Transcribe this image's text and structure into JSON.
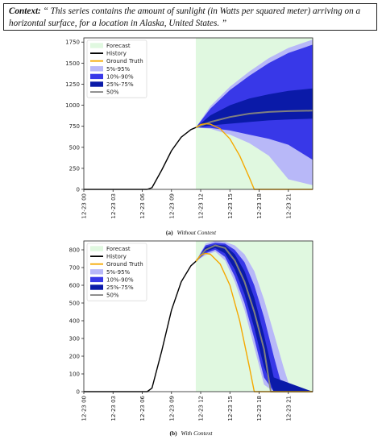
{
  "context": {
    "label": "Context:",
    "text": "“ This series contains the amount of sunlight (in Watts per squared meter) arriving on a horizontal surface, for a location in Alaska, United States. ”"
  },
  "captions": {
    "a_prefix": "(a)",
    "a_text": "Without Context",
    "b_prefix": "(b)",
    "b_text": "With Context"
  },
  "colors": {
    "forecast_bg": "#e0f8e0",
    "history": "#000000",
    "ground_truth": "#f5a800",
    "band_5_95": "#b8b8f8",
    "band_10_90": "#3838e8",
    "band_25_75": "#0a1aa8",
    "median": "#808080"
  },
  "chart_data": [
    {
      "type": "area",
      "title": "",
      "xlabel": "",
      "ylabel": "",
      "legend_position": "upper-left",
      "legend": [
        "Forecast",
        "History",
        "Ground Truth",
        "5%-95%",
        "10%-90%",
        "25%-75%",
        "50%"
      ],
      "x_tick_labels": [
        "12-23 00",
        "12-23 03",
        "12-23 06",
        "12-23 09",
        "12-23 12",
        "12-23 15",
        "12-23 18",
        "12-23 21"
      ],
      "x_ticks": [
        0,
        3,
        6,
        9,
        12,
        15,
        18,
        21
      ],
      "xlim": [
        0,
        23.5
      ],
      "y_ticks": [
        0,
        250,
        500,
        750,
        1000,
        1250,
        1500,
        1750
      ],
      "ylim": [
        0,
        1800
      ],
      "forecast_start": 11.5,
      "history": {
        "x": [
          0,
          6.5,
          7,
          8,
          9,
          10,
          11,
          11.5
        ],
        "y": [
          0,
          0,
          20,
          230,
          460,
          620,
          710,
          735
        ]
      },
      "ground_truth": {
        "x": [
          11.5,
          12,
          12.5,
          13,
          14,
          15,
          16,
          17,
          17.5,
          18,
          23.5
        ],
        "y": [
          735,
          770,
          780,
          775,
          720,
          600,
          400,
          140,
          0,
          0,
          0
        ]
      },
      "median": {
        "x": [
          11.5,
          13,
          15,
          17,
          19,
          21,
          23.5
        ],
        "y": [
          735,
          800,
          860,
          900,
          920,
          930,
          935
        ]
      },
      "band_25_75": {
        "x": [
          11.5,
          13,
          15,
          17,
          19,
          21,
          23.5
        ],
        "lower": [
          735,
          760,
          780,
          800,
          820,
          830,
          840
        ],
        "upper": [
          735,
          880,
          1000,
          1080,
          1130,
          1170,
          1200
        ]
      },
      "band_10_90": {
        "x": [
          11.5,
          13,
          15,
          17,
          19,
          21,
          23.5
        ],
        "lower": [
          735,
          730,
          700,
          650,
          600,
          530,
          350
        ],
        "upper": [
          735,
          960,
          1180,
          1350,
          1500,
          1620,
          1720
        ]
      },
      "band_5_95": {
        "x": [
          11.5,
          13,
          15,
          17,
          19,
          21,
          23.5
        ],
        "lower": [
          735,
          720,
          650,
          550,
          400,
          120,
          50
        ],
        "upper": [
          735,
          990,
          1220,
          1400,
          1560,
          1680,
          1780
        ]
      }
    },
    {
      "type": "area",
      "title": "",
      "xlabel": "",
      "ylabel": "",
      "legend_position": "upper-left",
      "legend": [
        "Forecast",
        "History",
        "Ground Truth",
        "5%-95%",
        "10%-90%",
        "25%-75%",
        "50%"
      ],
      "x_tick_labels": [
        "12-23 00",
        "12-23 03",
        "12-23 06",
        "12-23 09",
        "12-23 12",
        "12-23 15",
        "12-23 18",
        "12-23 21"
      ],
      "x_ticks": [
        0,
        3,
        6,
        9,
        12,
        15,
        18,
        21
      ],
      "xlim": [
        0,
        23.5
      ],
      "y_ticks": [
        0,
        100,
        200,
        300,
        400,
        500,
        600,
        700,
        800
      ],
      "ylim": [
        0,
        850
      ],
      "forecast_start": 11.5,
      "history": {
        "x": [
          0,
          6.5,
          7,
          8,
          9,
          10,
          11,
          11.5
        ],
        "y": [
          0,
          0,
          20,
          230,
          460,
          620,
          710,
          735
        ]
      },
      "ground_truth": {
        "x": [
          11.5,
          12,
          12.5,
          13,
          14,
          15,
          16,
          17,
          17.5,
          18,
          23.5
        ],
        "y": [
          735,
          770,
          780,
          775,
          720,
          600,
          400,
          140,
          0,
          0,
          0
        ]
      },
      "median": {
        "x": [
          11.5,
          12.5,
          13.5,
          14.5,
          15.5,
          16.5,
          17.5,
          18.5,
          19.2,
          23.5
        ],
        "y": [
          735,
          800,
          825,
          810,
          740,
          620,
          450,
          240,
          0,
          0
        ]
      },
      "band_25_75": {
        "x": [
          11.5,
          12.5,
          13.5,
          14.5,
          15.5,
          16.5,
          17.5,
          18.5,
          19.5,
          23.5
        ],
        "lower": [
          735,
          790,
          810,
          780,
          690,
          550,
          360,
          140,
          0,
          0
        ],
        "upper": [
          735,
          815,
          830,
          825,
          775,
          680,
          530,
          320,
          80,
          0
        ]
      },
      "band_10_90": {
        "x": [
          11.5,
          12.5,
          13.5,
          14.5,
          15.5,
          16.5,
          17.5,
          18.5,
          19.5,
          20.5,
          23.5
        ],
        "lower": [
          735,
          780,
          800,
          760,
          650,
          500,
          300,
          80,
          0,
          0,
          0
        ],
        "upper": [
          735,
          825,
          840,
          835,
          800,
          730,
          600,
          420,
          200,
          0,
          0
        ]
      },
      "band_5_95": {
        "x": [
          11.5,
          12.5,
          13.5,
          14.5,
          15.5,
          16.5,
          17.5,
          18.5,
          19.5,
          20.5,
          21.3,
          23.5
        ],
        "lower": [
          735,
          770,
          790,
          740,
          620,
          460,
          250,
          40,
          0,
          0,
          0,
          0
        ],
        "upper": [
          735,
          835,
          850,
          845,
          825,
          775,
          680,
          520,
          330,
          140,
          0,
          0
        ]
      }
    }
  ]
}
